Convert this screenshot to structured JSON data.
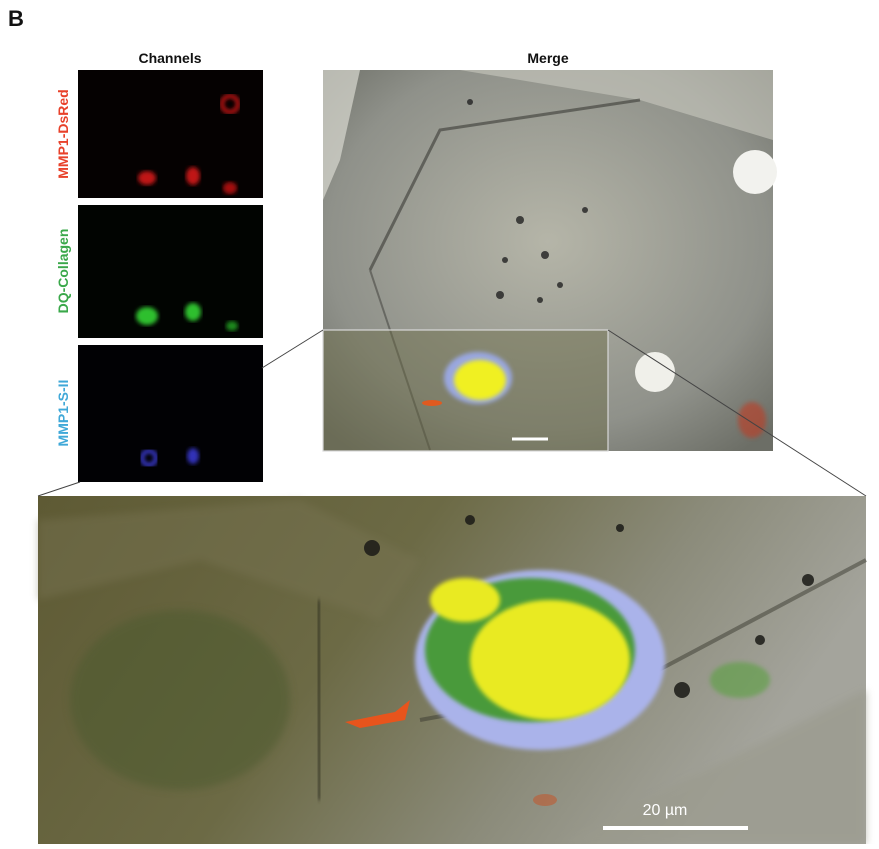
{
  "panel_label": "B",
  "channels": {
    "title": "Channels",
    "labels": [
      "MMP1-DsRed",
      "DQ-Collagen",
      "MMP1-S-II"
    ]
  },
  "merge": {
    "title": "Merge"
  },
  "zoom": {
    "scale_bar": "20 µm"
  }
}
